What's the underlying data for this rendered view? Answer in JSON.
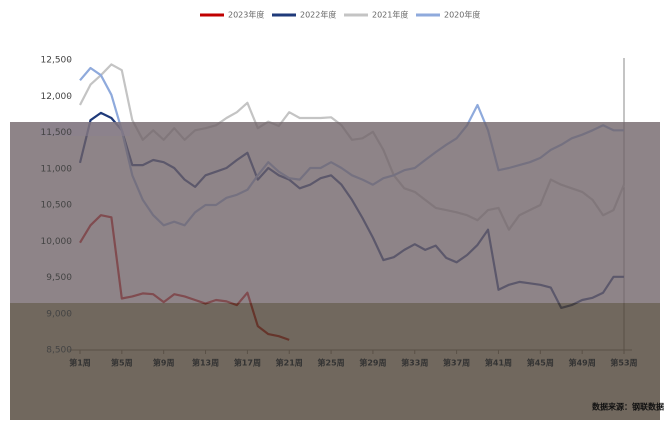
{
  "chart_data": {
    "type": "line",
    "categories": [
      "第1周",
      null,
      null,
      null,
      "第5周",
      null,
      null,
      null,
      "第9周",
      null,
      null,
      null,
      "第13周",
      null,
      null,
      null,
      "第17周",
      null,
      null,
      null,
      "第21周",
      null,
      null,
      null,
      "第25周",
      null,
      null,
      null,
      "第29周",
      null,
      null,
      null,
      "第33周",
      null,
      null,
      null,
      "第37周",
      null,
      null,
      null,
      "第41周",
      null,
      null,
      null,
      "第45周",
      null,
      null,
      null,
      "第49周",
      null,
      null,
      null,
      "第53周"
    ],
    "series": [
      {
        "name": "2023年度",
        "color": "#c00000",
        "values": [
          9980,
          10220,
          10360,
          10330,
          9210,
          9240,
          9280,
          9270,
          9160,
          9270,
          9240,
          9190,
          9140,
          9190,
          9170,
          9120,
          9290,
          8830,
          8720,
          8690,
          8640,
          null,
          null,
          null,
          null,
          null,
          null,
          null,
          null,
          null,
          null,
          null,
          null,
          null,
          null,
          null,
          null,
          null,
          null,
          null,
          null,
          null,
          null,
          null,
          null,
          null,
          null,
          null,
          null,
          null,
          null,
          null,
          null
        ]
      },
      {
        "name": "2022年度",
        "color": "#1f3a7a",
        "values": [
          11080,
          11670,
          11770,
          11700,
          11530,
          11050,
          11050,
          11120,
          11090,
          11010,
          10850,
          10750,
          10910,
          10960,
          11010,
          11120,
          11220,
          10850,
          11010,
          10910,
          10850,
          10730,
          10780,
          10870,
          10910,
          10780,
          10570,
          10320,
          10050,
          9740,
          9780,
          9880,
          9960,
          9880,
          9940,
          9770,
          9710,
          9810,
          9950,
          10160,
          9330,
          9400,
          9440,
          9420,
          9400,
          9360,
          9080,
          9120,
          9190,
          9220,
          9290,
          9510,
          9510
        ]
      },
      {
        "name": "2021年度",
        "color": "#c4c4c4",
        "values": [
          11880,
          12160,
          12290,
          12440,
          12360,
          11670,
          11400,
          11530,
          11400,
          11560,
          11400,
          11530,
          11560,
          11600,
          11700,
          11780,
          11910,
          11560,
          11650,
          11590,
          11780,
          11700,
          11700,
          11700,
          11710,
          11600,
          11400,
          11420,
          11510,
          11260,
          10910,
          10730,
          10680,
          10570,
          10460,
          10430,
          10400,
          10360,
          10290,
          10430,
          10460,
          10160,
          10360,
          10430,
          10500,
          10850,
          10780,
          10730,
          10680,
          10570,
          10360,
          10430,
          10780
        ]
      },
      {
        "name": "2020年度",
        "color": "#8faadc",
        "values": [
          12220,
          12390,
          12290,
          12020,
          11530,
          10910,
          10570,
          10360,
          10220,
          10270,
          10220,
          10400,
          10500,
          10500,
          10600,
          10640,
          10710,
          10910,
          11090,
          10960,
          10870,
          10850,
          11010,
          11010,
          11090,
          11010,
          10910,
          10850,
          10780,
          10870,
          10910,
          10980,
          11010,
          11120,
          11230,
          11330,
          11420,
          11600,
          11880,
          11530,
          10980,
          11010,
          11050,
          11090,
          11150,
          11260,
          11330,
          11420,
          11470,
          11530,
          11600,
          11530,
          11530
        ]
      }
    ],
    "ylim": [
      8500,
      12500
    ],
    "yticks": [
      {
        "value": 8500,
        "label": "8,500"
      },
      {
        "value": 9000,
        "label": "9,000"
      },
      {
        "value": 9500,
        "label": "9,500"
      },
      {
        "value": 10000,
        "label": "10,000"
      },
      {
        "value": 10500,
        "label": "10,500"
      },
      {
        "value": 11000,
        "label": "11,000"
      },
      {
        "value": 11500,
        "label": "11,500"
      },
      {
        "value": 12000,
        "label": "12,000"
      },
      {
        "value": 12500,
        "label": "12,500"
      }
    ],
    "source": "数据来源：钢联数据"
  }
}
